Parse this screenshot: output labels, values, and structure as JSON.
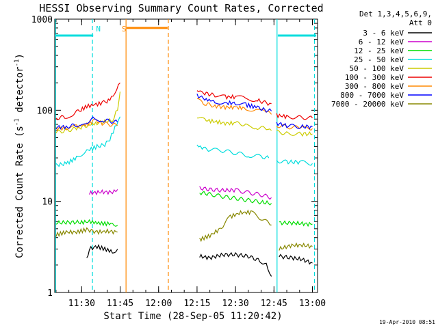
{
  "chart_data": {
    "type": "line",
    "title": "HESSI Observing Summary Count Rates, Corrected",
    "xlabel": "Start Time (28-Sep-05 11:20:42)",
    "ylabel_main": "Corrected Count Rate (s",
    "ylabel_exp1": "-1",
    "ylabel_mid": " detector",
    "ylabel_exp2": "-1",
    "ylabel_tail": ")",
    "y_scale": "log",
    "ylim": [
      1,
      1000
    ],
    "xlim_minutes": [
      679.5,
      782
    ],
    "x_ticks": [
      {
        "m": 690,
        "label": "11:30"
      },
      {
        "m": 705,
        "label": "11:45"
      },
      {
        "m": 720,
        "label": "12:00"
      },
      {
        "m": 735,
        "label": "12:15"
      },
      {
        "m": 750,
        "label": "12:30"
      },
      {
        "m": 765,
        "label": "12:45"
      },
      {
        "m": 780,
        "label": "13:00"
      }
    ],
    "y_ticks": [
      {
        "v": 1,
        "label": "1"
      },
      {
        "v": 10,
        "label": "10"
      },
      {
        "v": 100,
        "label": "100"
      },
      {
        "v": 1000,
        "label": "1000"
      }
    ],
    "legend_header": [
      "Det 1,3,4,5,6,9,",
      "Att 0"
    ],
    "legend_placement": "right",
    "series": [
      {
        "name": "3 - 6 keV",
        "color": "#000000",
        "segments": [
          [
            [
              692,
              2.3
            ],
            [
              693,
              3.0
            ],
            [
              696,
              3.2
            ],
            [
              699,
              3.0
            ],
            [
              702,
              2.8
            ],
            [
              704,
              3.0
            ]
          ],
          [
            [
              736,
              2.5
            ],
            [
              740,
              2.4
            ],
            [
              745,
              2.6
            ],
            [
              750,
              2.6
            ],
            [
              755,
              2.5
            ],
            [
              760,
              2.2
            ],
            [
              762,
              2.0
            ],
            [
              764,
              1.5
            ]
          ],
          [
            [
              767,
              2.5
            ],
            [
              772,
              2.4
            ],
            [
              776,
              2.3
            ],
            [
              780,
              2.1
            ]
          ]
        ]
      },
      {
        "name": "6 - 12 keV",
        "color": "#cc00cc",
        "segments": [
          [
            [
              693,
              12.3
            ],
            [
              698,
              12.7
            ],
            [
              702,
              12.6
            ],
            [
              704,
              13.5
            ]
          ],
          [
            [
              736,
              14.0
            ],
            [
              740,
              13.5
            ],
            [
              745,
              13.2
            ],
            [
              750,
              13.3
            ],
            [
              755,
              12.5
            ],
            [
              760,
              11.8
            ],
            [
              764,
              11.0
            ]
          ]
        ]
      },
      {
        "name": "12 - 25 keV",
        "color": "#00dd00",
        "segments": [
          [
            [
              680,
              5.8
            ],
            [
              685,
              5.9
            ],
            [
              690,
              5.9
            ],
            [
              693,
              6.0
            ],
            [
              696,
              5.8
            ],
            [
              699,
              5.7
            ],
            [
              702,
              5.7
            ],
            [
              704,
              5.5
            ]
          ],
          [
            [
              736,
              12.5
            ],
            [
              740,
              12.0
            ],
            [
              745,
              11.3
            ],
            [
              750,
              10.8
            ],
            [
              755,
              10.3
            ],
            [
              760,
              9.8
            ],
            [
              764,
              9.5
            ]
          ],
          [
            [
              767,
              5.8
            ],
            [
              772,
              5.8
            ],
            [
              776,
              5.7
            ],
            [
              780,
              5.6
            ]
          ]
        ]
      },
      {
        "name": "25 - 50 keV",
        "color": "#00dddd",
        "segments": [
          [
            [
              680,
              25
            ],
            [
              684,
              26
            ],
            [
              688,
              30
            ],
            [
              692,
              36
            ],
            [
              696,
              40
            ],
            [
              699,
              42
            ],
            [
              701,
              48
            ],
            [
              703,
              65
            ],
            [
              705,
              85
            ]
          ],
          [
            [
              735,
              42
            ],
            [
              737,
              38
            ],
            [
              740,
              37
            ],
            [
              745,
              36
            ],
            [
              750,
              34
            ],
            [
              755,
              32
            ],
            [
              760,
              31
            ],
            [
              763,
              30
            ]
          ],
          [
            [
              766,
              28
            ],
            [
              770,
              27
            ],
            [
              775,
              27
            ],
            [
              780,
              26
            ]
          ]
        ]
      },
      {
        "name": "50 - 100 keV",
        "color": "#cccc00",
        "segments": [
          [
            [
              680,
              57
            ],
            [
              684,
              60
            ],
            [
              688,
              63
            ],
            [
              692,
              68
            ],
            [
              696,
              72
            ],
            [
              699,
              75
            ],
            [
              702,
              78
            ],
            [
              704,
              105
            ],
            [
              705,
              160
            ]
          ],
          [
            [
              735,
              82
            ],
            [
              738,
              78
            ],
            [
              742,
              75
            ],
            [
              746,
              72
            ],
            [
              750,
              72
            ],
            [
              754,
              70
            ],
            [
              758,
              65
            ],
            [
              762,
              63
            ],
            [
              764,
              60
            ]
          ],
          [
            [
              766,
              58
            ],
            [
              770,
              56
            ],
            [
              775,
              55
            ],
            [
              780,
              55
            ]
          ]
        ]
      },
      {
        "name": "100 - 300 keV",
        "color": "#ee0000",
        "segments": [
          [
            [
              680,
              82
            ],
            [
              684,
              85
            ],
            [
              688,
              95
            ],
            [
              692,
              110
            ],
            [
              695,
              115
            ],
            [
              698,
              120
            ],
            [
              701,
              130
            ],
            [
              703,
              155
            ],
            [
              705,
              200
            ]
          ],
          [
            [
              735,
              170
            ],
            [
              738,
              155
            ],
            [
              742,
              145
            ],
            [
              746,
              140
            ],
            [
              750,
              140
            ],
            [
              754,
              135
            ],
            [
              758,
              130
            ],
            [
              762,
              120
            ],
            [
              764,
              118
            ]
          ],
          [
            [
              766,
              88
            ],
            [
              770,
              85
            ],
            [
              775,
              84
            ],
            [
              780,
              82
            ]
          ]
        ]
      },
      {
        "name": "300 - 800 keV",
        "color": "#ff8800",
        "segments": [
          [
            [
              680,
              63
            ],
            [
              684,
              64
            ],
            [
              688,
              66
            ],
            [
              692,
              70
            ],
            [
              695,
              78
            ],
            [
              698,
              72
            ],
            [
              701,
              70
            ],
            [
              704,
              68
            ]
          ],
          [
            [
              735,
              130
            ],
            [
              738,
              118
            ],
            [
              742,
              112
            ],
            [
              746,
              108
            ],
            [
              750,
              108
            ],
            [
              754,
              105
            ],
            [
              758,
              100
            ],
            [
              762,
              95
            ],
            [
              764,
              90
            ]
          ],
          [
            [
              766,
              68
            ],
            [
              770,
              66
            ],
            [
              775,
              64
            ],
            [
              780,
              63
            ]
          ]
        ]
      },
      {
        "name": "800 - 7000 keV",
        "color": "#0000ff",
        "segments": [
          [
            [
              680,
              65
            ],
            [
              684,
              66
            ],
            [
              688,
              69
            ],
            [
              692,
              75
            ],
            [
              695,
              82
            ],
            [
              698,
              78
            ],
            [
              701,
              76
            ],
            [
              704,
              74
            ]
          ],
          [
            [
              735,
              145
            ],
            [
              738,
              132
            ],
            [
              742,
              125
            ],
            [
              746,
              120
            ],
            [
              750,
              120
            ],
            [
              754,
              115
            ],
            [
              758,
              108
            ],
            [
              762,
              100
            ],
            [
              764,
              98
            ]
          ],
          [
            [
              766,
              72
            ],
            [
              770,
              68
            ],
            [
              775,
              66
            ],
            [
              780,
              66
            ]
          ]
        ]
      },
      {
        "name": "7000 - 20000 keV",
        "color": "#888800",
        "segments": [
          [
            [
              680,
              4.3
            ],
            [
              684,
              4.6
            ],
            [
              688,
              4.6
            ],
            [
              692,
              4.9
            ],
            [
              696,
              4.6
            ],
            [
              700,
              4.7
            ],
            [
              704,
              4.6
            ]
          ],
          [
            [
              736,
              3.8
            ],
            [
              740,
              4.2
            ],
            [
              744,
              5.0
            ],
            [
              748,
              6.8
            ],
            [
              752,
              7.5
            ],
            [
              756,
              7.6
            ],
            [
              760,
              6.5
            ],
            [
              764,
              5.5
            ]
          ],
          [
            [
              767,
              3.0
            ],
            [
              772,
              3.3
            ],
            [
              776,
              3.3
            ],
            [
              780,
              3.2
            ]
          ]
        ]
      }
    ],
    "flag_bars": [
      {
        "color": "#00dddd",
        "y": 660,
        "from": 679.5,
        "to": 694.5
      },
      {
        "color": "#ff8800",
        "y": 800,
        "from": 707.5,
        "to": 723.5
      },
      {
        "color": "#00dddd",
        "y": 660,
        "from": 766.5,
        "to": 781.5
      }
    ],
    "vertical_lines": [
      {
        "m": 679.8,
        "color": "#00dddd",
        "dash": false
      },
      {
        "m": 694.2,
        "color": "#00dddd",
        "dash": true
      },
      {
        "m": 707.3,
        "color": "#ff8800",
        "dash": false
      },
      {
        "m": 723.8,
        "color": "#ff8800",
        "dash": true
      },
      {
        "m": 766.2,
        "color": "#00dddd",
        "dash": false
      },
      {
        "m": 780.8,
        "color": "#00dddd",
        "dash": true
      }
    ],
    "flag_labels": [
      {
        "text": "N",
        "m": 696.5,
        "color": "#00dddd"
      },
      {
        "text": "S",
        "m": 706.5,
        "color": "#ff8800"
      }
    ],
    "footer": "19-Apr-2010 08:51"
  }
}
